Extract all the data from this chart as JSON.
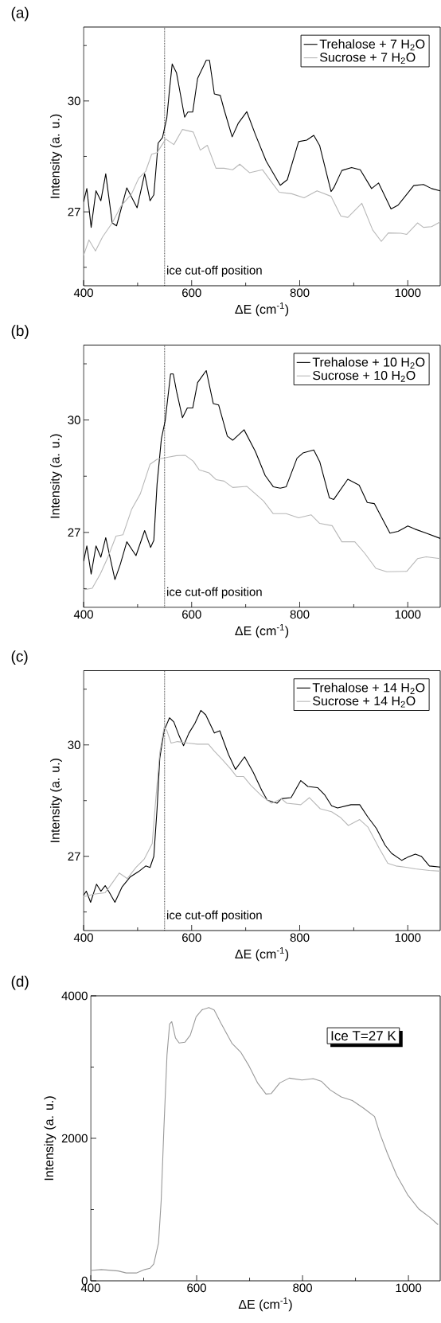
{
  "chart_data": [
    {
      "type": "line",
      "title": "(a)",
      "xlabel": "ΔE (cm$^{-1}$)",
      "ylabel": "Intensity (a. u.)",
      "xlim": [
        400,
        1060
      ],
      "ylim": [
        25,
        32
      ],
      "xticks": [
        400,
        {
          "value": 500,
          "label": null
        },
        600,
        {
          "value": 700,
          "label": null
        },
        800,
        {
          "value": 900,
          "label": null
        },
        1000
      ],
      "yticks": [
        {
          "value": 25.5,
          "label": null
        },
        27,
        {
          "value": 28.5,
          "label": null
        },
        30,
        {
          "value": 31.5,
          "label": null
        }
      ],
      "legend": "top right",
      "ref_lines": [
        {
          "axis": "x",
          "value": 550,
          "label": "ice cut-off position",
          "line_style": "dotted",
          "color": "#000000"
        }
      ],
      "series": [
        {
          "name": "Trehalose + 7 H$_{2}$O",
          "color": "#000000",
          "x": [
            400,
            406,
            414,
            423,
            432,
            441,
            453,
            461,
            480,
            499,
            513,
            523,
            530,
            538,
            546,
            554,
            559,
            564,
            572,
            587,
            593,
            602,
            611,
            627,
            633,
            642,
            653,
            660,
            675,
            686,
            702,
            718,
            738,
            764,
            777,
            798,
            813,
            826,
            837,
            858,
            863,
            878,
            896,
            912,
            933,
            946,
            969,
            982,
            1011,
            1029,
            1044,
            1060
          ],
          "values": [
            27.27,
            27.63,
            26.58,
            27.57,
            27.3,
            28.03,
            26.7,
            26.62,
            27.65,
            27.11,
            28.03,
            27.3,
            27.46,
            28.86,
            29.01,
            29.54,
            30.3,
            31.0,
            30.76,
            29.56,
            29.7,
            29.7,
            30.61,
            31.1,
            31.1,
            30.19,
            30.15,
            29.77,
            29.03,
            29.39,
            29.71,
            29.09,
            28.37,
            27.72,
            27.87,
            28.9,
            28.94,
            29.07,
            28.79,
            27.55,
            27.65,
            28.12,
            28.2,
            28.14,
            27.63,
            27.78,
            27.08,
            27.18,
            27.71,
            27.74,
            27.63,
            27.57
          ]
        },
        {
          "name": "Sucrose + 7 H$_{2}$O",
          "color": "#b8b8b8",
          "x": [
            400,
            410,
            422,
            435,
            453,
            469,
            489,
            502,
            515,
            526,
            536,
            552,
            567,
            583,
            603,
            616,
            629,
            645,
            660,
            676,
            689,
            707,
            731,
            746,
            762,
            785,
            808,
            832,
            858,
            876,
            889,
            915,
            935,
            951,
            964,
            987,
            998,
            1018,
            1029,
            1044,
            1060
          ],
          "values": [
            25.82,
            26.24,
            25.94,
            26.32,
            26.7,
            27.15,
            27.49,
            27.91,
            28.1,
            28.56,
            28.6,
            28.97,
            28.82,
            29.23,
            29.16,
            28.67,
            28.8,
            28.18,
            28.18,
            28.14,
            28.29,
            28.06,
            28.14,
            27.84,
            27.53,
            27.49,
            27.38,
            27.57,
            27.42,
            26.89,
            26.85,
            27.23,
            26.51,
            26.2,
            26.43,
            26.42,
            26.39,
            26.7,
            26.58,
            26.6,
            26.73
          ]
        }
      ]
    },
    {
      "type": "line",
      "title": "(b)",
      "xlabel": "ΔE (cm$^{-1}$)",
      "ylabel": "Intensity (a. u.)",
      "xlim": [
        400,
        1060
      ],
      "ylim": [
        25,
        32
      ],
      "xticks": [
        400,
        {
          "value": 500,
          "label": null
        },
        600,
        {
          "value": 700,
          "label": null
        },
        800,
        {
          "value": 900,
          "label": null
        },
        1000
      ],
      "yticks": [
        {
          "value": 25.5,
          "label": null
        },
        27,
        {
          "value": 28.5,
          "label": null
        },
        30,
        {
          "value": 31.5,
          "label": null
        }
      ],
      "legend": "top right",
      "ref_lines": [
        {
          "axis": "x",
          "value": 550,
          "label": "ice cut-off position",
          "line_style": "dotted",
          "color": "#000000"
        }
      ],
      "series": [
        {
          "name": "Trehalose + 10 H$_{2}$O",
          "color": "#000000",
          "x": [
            400,
            406,
            414,
            423,
            432,
            441,
            458,
            468,
            480,
            497,
            513,
            524,
            530,
            536,
            544,
            551,
            561,
            566,
            572,
            583,
            592,
            602,
            611,
            627,
            640,
            650,
            666,
            676,
            697,
            718,
            736,
            751,
            764,
            775,
            795,
            806,
            826,
            837,
            855,
            863,
            889,
            910,
            925,
            938,
            967,
            982,
            1000,
            1013,
            1034,
            1060
          ],
          "values": [
            26.23,
            26.64,
            25.89,
            26.64,
            26.34,
            26.86,
            25.74,
            26.15,
            26.75,
            26.38,
            27.05,
            26.6,
            26.79,
            28.29,
            29.5,
            29.98,
            31.23,
            31.23,
            30.77,
            30.06,
            30.32,
            30.32,
            31.0,
            31.32,
            30.44,
            30.4,
            29.57,
            29.46,
            29.74,
            29.16,
            28.52,
            28.22,
            28.18,
            28.22,
            28.98,
            29.12,
            29.2,
            28.89,
            27.92,
            27.88,
            28.42,
            28.26,
            27.8,
            27.77,
            26.98,
            27.03,
            27.17,
            27.09,
            26.98,
            26.84
          ]
        },
        {
          "name": "Sucrose + 10 H$_{2}$O",
          "color": "#b8b8b8",
          "x": [
            400,
            416,
            431,
            445,
            460,
            473,
            489,
            505,
            523,
            536,
            557,
            572,
            588,
            603,
            614,
            632,
            645,
            660,
            676,
            702,
            718,
            733,
            751,
            775,
            798,
            821,
            837,
            860,
            878,
            902,
            920,
            941,
            961,
            998,
            1018,
            1034,
            1060
          ],
          "values": [
            25.47,
            25.51,
            25.89,
            26.34,
            26.9,
            26.94,
            27.62,
            28.03,
            28.82,
            28.95,
            29.01,
            29.05,
            29.06,
            28.9,
            28.67,
            28.59,
            28.41,
            28.37,
            28.2,
            28.23,
            28.03,
            27.84,
            27.5,
            27.5,
            27.39,
            27.47,
            27.24,
            27.18,
            26.75,
            26.75,
            26.45,
            26.04,
            25.95,
            25.96,
            26.3,
            26.35,
            26.3
          ]
        }
      ]
    },
    {
      "type": "line",
      "title": "(c)",
      "xlabel": "ΔE (cm$^{-1}$)",
      "ylabel": "Intensity (a. u.)",
      "xlim": [
        400,
        1060
      ],
      "ylim": [
        25,
        32
      ],
      "xticks": [
        400,
        {
          "value": 500,
          "label": null
        },
        600,
        {
          "value": 700,
          "label": null
        },
        800,
        {
          "value": 900,
          "label": null
        },
        1000
      ],
      "yticks": [
        {
          "value": 25.5,
          "label": null
        },
        27,
        {
          "value": 28.5,
          "label": null
        },
        30,
        {
          "value": 31.5,
          "label": null
        }
      ],
      "legend": "top right",
      "ref_lines": [
        {
          "axis": "x",
          "value": 550,
          "label": "ice cut-off position",
          "line_style": "dotted",
          "color": "#000000"
        }
      ],
      "series": [
        {
          "name": "Trehalose + 14 H$_{2}$O",
          "color": "#000000",
          "x": [
            400,
            405,
            413,
            424,
            432,
            440,
            448,
            458,
            471,
            486,
            502,
            515,
            523,
            530,
            536,
            541,
            549,
            559,
            567,
            577,
            585,
            595,
            606,
            617,
            626,
            642,
            652,
            668,
            681,
            698,
            714,
            730,
            740,
            758,
            766,
            784,
            802,
            815,
            833,
            846,
            859,
            870,
            895,
            911,
            926,
            942,
            958,
            970,
            989,
            999,
            1014,
            1025,
            1040,
            1060
          ],
          "values": [
            25.95,
            26.06,
            25.76,
            26.25,
            26.06,
            26.21,
            26.02,
            25.76,
            26.17,
            26.44,
            26.59,
            26.74,
            26.7,
            27.0,
            28.28,
            29.64,
            30.39,
            30.73,
            30.62,
            30.24,
            29.98,
            30.32,
            30.58,
            30.93,
            30.81,
            30.32,
            30.38,
            29.75,
            29.34,
            29.68,
            29.26,
            28.77,
            28.51,
            28.43,
            28.55,
            28.58,
            29.04,
            28.88,
            28.85,
            28.66,
            28.36,
            28.3,
            28.39,
            28.39,
            28.06,
            27.75,
            27.3,
            27.08,
            26.89,
            26.97,
            27.06,
            27.0,
            26.74,
            26.71
          ]
        },
        {
          "name": "Sucrose + 14 H$_{2}$O",
          "color": "#b8b8b8",
          "x": [
            400,
            419,
            440,
            455,
            466,
            481,
            497,
            512,
            527,
            533,
            541,
            549,
            554,
            562,
            574,
            593,
            611,
            631,
            642,
            657,
            673,
            683,
            696,
            709,
            730,
            748,
            766,
            776,
            802,
            818,
            838,
            859,
            875,
            890,
            911,
            926,
            947,
            963,
            978,
            999,
            1014,
            1040,
            1060
          ],
          "values": [
            25.91,
            25.98,
            26.02,
            26.32,
            26.55,
            26.4,
            26.7,
            26.92,
            27.34,
            28.43,
            29.79,
            30.47,
            30.39,
            30.05,
            30.09,
            30.05,
            30.02,
            30.02,
            29.83,
            29.6,
            29.34,
            29.15,
            29.15,
            28.92,
            28.62,
            28.43,
            28.55,
            28.43,
            28.39,
            28.58,
            28.28,
            28.2,
            28.05,
            27.83,
            27.99,
            27.79,
            27.22,
            26.81,
            26.74,
            26.7,
            26.66,
            26.62,
            26.6
          ]
        }
      ]
    },
    {
      "type": "line",
      "title": "(d)",
      "xlabel": "ΔE (cm$^{-1}$)",
      "ylabel": "Intensity (a. u.)",
      "xlim": [
        400,
        1060
      ],
      "ylim": [
        0,
        4000
      ],
      "xticks": [
        400,
        {
          "value": 500,
          "label": null
        },
        600,
        {
          "value": 700,
          "label": null
        },
        800,
        {
          "value": 900,
          "label": null
        },
        1000
      ],
      "yticks": [
        0,
        {
          "value": 1000,
          "label": null
        },
        2000,
        {
          "value": 3000,
          "label": null
        },
        4000
      ],
      "annotations": [
        "Ice   T=27 K"
      ],
      "series": [
        {
          "color": "#999999",
          "x": [
            400,
            420,
            452,
            467,
            486,
            502,
            512,
            519,
            528,
            533,
            538,
            544,
            549,
            553,
            560,
            567,
            578,
            588,
            599,
            610,
            623,
            633,
            646,
            667,
            683,
            699,
            715,
            731,
            741,
            757,
            775,
            799,
            820,
            836,
            852,
            873,
            894,
            915,
            936,
            946,
            960,
            978,
            999,
            1020,
            1041,
            1056
          ],
          "values": [
            146,
            158,
            138,
            110,
            110,
            158,
            177,
            236,
            532,
            1123,
            2108,
            3172,
            3606,
            3637,
            3409,
            3338,
            3350,
            3448,
            3705,
            3803,
            3835,
            3803,
            3614,
            3330,
            3212,
            3015,
            2778,
            2621,
            2629,
            2778,
            2845,
            2818,
            2838,
            2798,
            2680,
            2581,
            2530,
            2424,
            2306,
            2069,
            1793,
            1478,
            1202,
            1005,
            887,
            788
          ]
        }
      ]
    }
  ]
}
